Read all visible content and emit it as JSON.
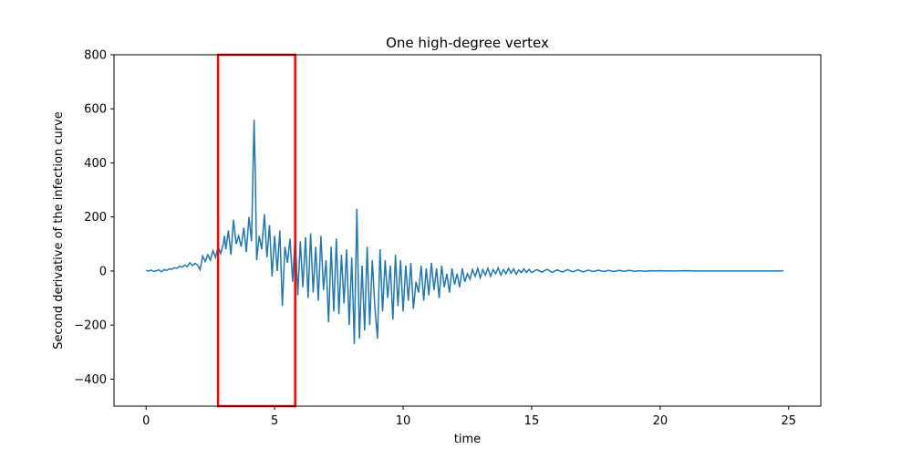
{
  "chart_data": {
    "type": "line",
    "title": "One high-degree vertex",
    "xlabel": "time",
    "ylabel": "Second derivative of the infection curve",
    "xlim": [
      -1.25,
      26.25
    ],
    "ylim": [
      -500,
      800
    ],
    "xticks": [
      0,
      5,
      10,
      15,
      20,
      25
    ],
    "yticks": [
      -400,
      -200,
      0,
      200,
      400,
      600,
      800
    ],
    "xtick_labels": [
      "0",
      "5",
      "10",
      "15",
      "20",
      "25"
    ],
    "ytick_labels": [
      "−400",
      "−200",
      "0",
      "200",
      "400",
      "600",
      "800"
    ],
    "grid": false,
    "series": [
      {
        "color": "#1f77b4",
        "points": [
          [
            0,
            2
          ],
          [
            0.1,
            0
          ],
          [
            0.2,
            3
          ],
          [
            0.3,
            -2
          ],
          [
            0.4,
            1
          ],
          [
            0.5,
            4
          ],
          [
            0.6,
            -3
          ],
          [
            0.7,
            5
          ],
          [
            0.8,
            2
          ],
          [
            0.9,
            8
          ],
          [
            1.0,
            6
          ],
          [
            1.1,
            12
          ],
          [
            1.2,
            10
          ],
          [
            1.3,
            18
          ],
          [
            1.4,
            14
          ],
          [
            1.5,
            22
          ],
          [
            1.6,
            16
          ],
          [
            1.7,
            30
          ],
          [
            1.8,
            20
          ],
          [
            1.9,
            28
          ],
          [
            2.0,
            22
          ],
          [
            2.1,
            5
          ],
          [
            2.2,
            55
          ],
          [
            2.3,
            35
          ],
          [
            2.4,
            60
          ],
          [
            2.5,
            40
          ],
          [
            2.6,
            75
          ],
          [
            2.7,
            50
          ],
          [
            2.8,
            90
          ],
          [
            2.9,
            65
          ],
          [
            3.0,
            100
          ],
          [
            3.05,
            130
          ],
          [
            3.1,
            80
          ],
          [
            3.2,
            150
          ],
          [
            3.3,
            60
          ],
          [
            3.4,
            190
          ],
          [
            3.5,
            100
          ],
          [
            3.6,
            130
          ],
          [
            3.7,
            90
          ],
          [
            3.8,
            160
          ],
          [
            3.9,
            70
          ],
          [
            4.0,
            200
          ],
          [
            4.1,
            110
          ],
          [
            4.2,
            560
          ],
          [
            4.25,
            350
          ],
          [
            4.3,
            40
          ],
          [
            4.4,
            130
          ],
          [
            4.5,
            80
          ],
          [
            4.6,
            210
          ],
          [
            4.7,
            50
          ],
          [
            4.8,
            170
          ],
          [
            4.9,
            -20
          ],
          [
            5.0,
            130
          ],
          [
            5.1,
            0
          ],
          [
            5.2,
            150
          ],
          [
            5.3,
            -130
          ],
          [
            5.4,
            90
          ],
          [
            5.5,
            30
          ],
          [
            5.6,
            120
          ],
          [
            5.7,
            -40
          ],
          [
            5.8,
            130
          ],
          [
            5.9,
            -90
          ],
          [
            6.0,
            110
          ],
          [
            6.1,
            -60
          ],
          [
            6.2,
            125
          ],
          [
            6.3,
            -100
          ],
          [
            6.4,
            140
          ],
          [
            6.5,
            -80
          ],
          [
            6.6,
            90
          ],
          [
            6.7,
            -110
          ],
          [
            6.8,
            130
          ],
          [
            6.9,
            -70
          ],
          [
            7.0,
            40
          ],
          [
            7.1,
            -190
          ],
          [
            7.2,
            90
          ],
          [
            7.3,
            -150
          ],
          [
            7.4,
            120
          ],
          [
            7.5,
            -160
          ],
          [
            7.6,
            60
          ],
          [
            7.7,
            -120
          ],
          [
            7.8,
            80
          ],
          [
            7.9,
            -200
          ],
          [
            8.0,
            50
          ],
          [
            8.1,
            -270
          ],
          [
            8.2,
            230
          ],
          [
            8.3,
            -250
          ],
          [
            8.4,
            20
          ],
          [
            8.5,
            -220
          ],
          [
            8.6,
            90
          ],
          [
            8.7,
            -200
          ],
          [
            8.8,
            40
          ],
          [
            8.9,
            -130
          ],
          [
            9.0,
            -250
          ],
          [
            9.1,
            80
          ],
          [
            9.2,
            -150
          ],
          [
            9.3,
            40
          ],
          [
            9.4,
            -100
          ],
          [
            9.5,
            20
          ],
          [
            9.6,
            -180
          ],
          [
            9.7,
            60
          ],
          [
            9.8,
            -130
          ],
          [
            9.9,
            40
          ],
          [
            10.0,
            -150
          ],
          [
            10.1,
            20
          ],
          [
            10.2,
            -110
          ],
          [
            10.3,
            30
          ],
          [
            10.4,
            -140
          ],
          [
            10.5,
            -40
          ],
          [
            10.6,
            -80
          ],
          [
            10.7,
            20
          ],
          [
            10.8,
            -110
          ],
          [
            10.9,
            10
          ],
          [
            11.0,
            -90
          ],
          [
            11.1,
            30
          ],
          [
            11.2,
            -70
          ],
          [
            11.3,
            10
          ],
          [
            11.4,
            -100
          ],
          [
            11.5,
            20
          ],
          [
            11.6,
            -60
          ],
          [
            11.7,
            -10
          ],
          [
            11.8,
            -80
          ],
          [
            11.9,
            10
          ],
          [
            12.0,
            -50
          ],
          [
            12.1,
            -10
          ],
          [
            12.2,
            -60
          ],
          [
            12.3,
            10
          ],
          [
            12.4,
            -40
          ],
          [
            12.5,
            -10
          ],
          [
            12.6,
            -30
          ],
          [
            12.7,
            5
          ],
          [
            12.8,
            -20
          ],
          [
            12.9,
            10
          ],
          [
            13.0,
            -25
          ],
          [
            13.1,
            5
          ],
          [
            13.2,
            -15
          ],
          [
            13.3,
            10
          ],
          [
            13.4,
            -20
          ],
          [
            13.5,
            5
          ],
          [
            13.6,
            -10
          ],
          [
            13.7,
            12
          ],
          [
            13.8,
            -15
          ],
          [
            13.9,
            5
          ],
          [
            14.0,
            -10
          ],
          [
            14.1,
            10
          ],
          [
            14.2,
            -8
          ],
          [
            14.3,
            8
          ],
          [
            14.4,
            -12
          ],
          [
            14.5,
            4
          ],
          [
            14.6,
            -6
          ],
          [
            14.7,
            8
          ],
          [
            14.8,
            -5
          ],
          [
            14.9,
            6
          ],
          [
            15.0,
            -6
          ],
          [
            15.2,
            5
          ],
          [
            15.4,
            -4
          ],
          [
            15.6,
            6
          ],
          [
            15.8,
            -5
          ],
          [
            16.0,
            4
          ],
          [
            16.2,
            -4
          ],
          [
            16.4,
            5
          ],
          [
            16.6,
            -3
          ],
          [
            16.8,
            4
          ],
          [
            17.0,
            -3
          ],
          [
            17.2,
            3
          ],
          [
            17.4,
            -2
          ],
          [
            17.6,
            3
          ],
          [
            17.8,
            -2
          ],
          [
            18.0,
            2
          ],
          [
            18.2,
            -2
          ],
          [
            18.4,
            2
          ],
          [
            18.6,
            -1
          ],
          [
            18.8,
            2
          ],
          [
            19.0,
            -1
          ],
          [
            19.2,
            1
          ],
          [
            19.4,
            -1
          ],
          [
            19.6,
            1
          ],
          [
            19.8,
            0
          ],
          [
            20.0,
            1
          ],
          [
            20.5,
            0
          ],
          [
            21.0,
            1
          ],
          [
            21.5,
            0
          ],
          [
            22.0,
            0
          ],
          [
            22.5,
            0
          ],
          [
            23.0,
            0
          ],
          [
            23.5,
            0
          ],
          [
            24.0,
            0
          ],
          [
            24.5,
            0
          ],
          [
            24.8,
            0
          ]
        ]
      }
    ],
    "annotations": [
      {
        "type": "rectangle",
        "x_range": [
          2.8,
          5.8
        ],
        "y_range": [
          -500,
          800
        ],
        "color": "#ff0000"
      }
    ]
  }
}
